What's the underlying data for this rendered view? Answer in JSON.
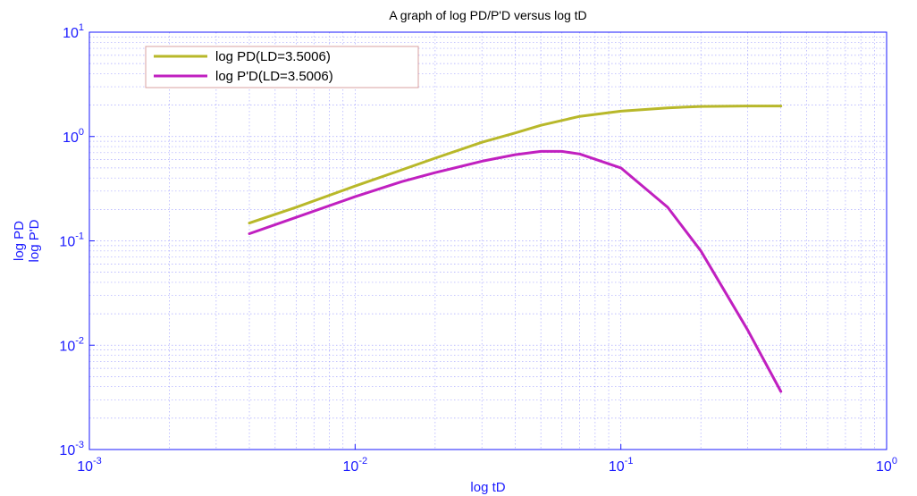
{
  "chart_data": {
    "type": "line",
    "title": "A graph of log PD/P'D versus log tD",
    "xlabel": "log tD",
    "ylabel_lines": [
      "log PD",
      "log P'D"
    ],
    "xscale": "log",
    "yscale": "log",
    "xlim": [
      0.001,
      1
    ],
    "ylim": [
      0.001,
      10
    ],
    "grid": true,
    "legend_position": "top-left",
    "x_ticks": [
      {
        "base": "10",
        "exp": "-3",
        "value": 0.001
      },
      {
        "base": "10",
        "exp": "-2",
        "value": 0.01
      },
      {
        "base": "10",
        "exp": "-1",
        "value": 0.1
      },
      {
        "base": "10",
        "exp": "0",
        "value": 1
      }
    ],
    "y_ticks": [
      {
        "base": "10",
        "exp": "-3",
        "value": 0.001
      },
      {
        "base": "10",
        "exp": "-2",
        "value": 0.01
      },
      {
        "base": "10",
        "exp": "-1",
        "value": 0.1
      },
      {
        "base": "10",
        "exp": "0",
        "value": 1
      },
      {
        "base": "10",
        "exp": "1",
        "value": 10
      }
    ],
    "series": [
      {
        "name": "log PD(LD=3.5006)",
        "color": "#b8b82a",
        "x": [
          0.004,
          0.006,
          0.01,
          0.015,
          0.02,
          0.03,
          0.04,
          0.05,
          0.07,
          0.1,
          0.15,
          0.2,
          0.3,
          0.4
        ],
        "y": [
          0.148,
          0.21,
          0.335,
          0.48,
          0.62,
          0.88,
          1.08,
          1.28,
          1.56,
          1.75,
          1.88,
          1.94,
          1.96,
          1.96
        ]
      },
      {
        "name": "log P'D(LD=3.5006)",
        "color": "#c020c0",
        "x": [
          0.004,
          0.006,
          0.01,
          0.015,
          0.02,
          0.03,
          0.04,
          0.05,
          0.06,
          0.07,
          0.1,
          0.15,
          0.2,
          0.3,
          0.4
        ],
        "y": [
          0.117,
          0.168,
          0.265,
          0.37,
          0.45,
          0.58,
          0.67,
          0.72,
          0.72,
          0.68,
          0.5,
          0.21,
          0.08,
          0.014,
          0.0036
        ]
      }
    ]
  }
}
